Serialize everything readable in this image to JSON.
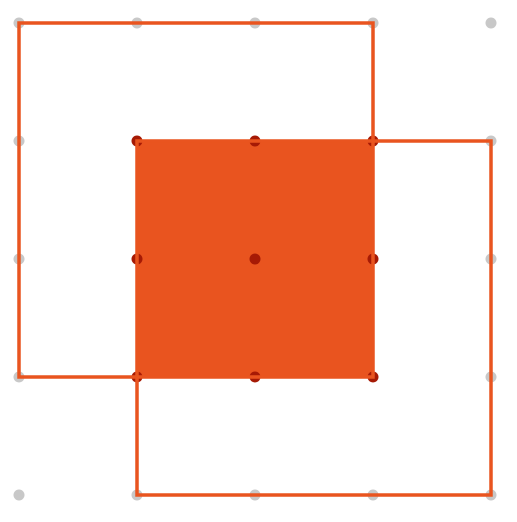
{
  "diagram": {
    "grid": {
      "columns": 5,
      "rows": 5
    },
    "squares": [
      {
        "id": "square-a",
        "from": [
          0,
          0
        ],
        "to": [
          3,
          3
        ],
        "style": "outline"
      },
      {
        "id": "square-b",
        "from": [
          1,
          1
        ],
        "to": [
          4,
          4
        ],
        "style": "outline"
      },
      {
        "id": "overlap",
        "from": [
          1,
          1
        ],
        "to": [
          3,
          3
        ],
        "style": "filled"
      }
    ],
    "colors": {
      "accent": "#E9541F",
      "dot": "#C8C8C8",
      "dot_highlight": "#A61A05",
      "background": "#FFFFFF"
    }
  }
}
